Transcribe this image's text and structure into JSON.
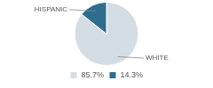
{
  "chart_data": {
    "type": "pie",
    "categories": [
      "WHITE",
      "HISPANIC"
    ],
    "values": [
      85.7,
      14.3
    ],
    "value_labels": [
      "85.7%",
      "14.3%"
    ],
    "colors": [
      "#d5dde4",
      "#2e6d8e"
    ],
    "legend": "bottom"
  }
}
